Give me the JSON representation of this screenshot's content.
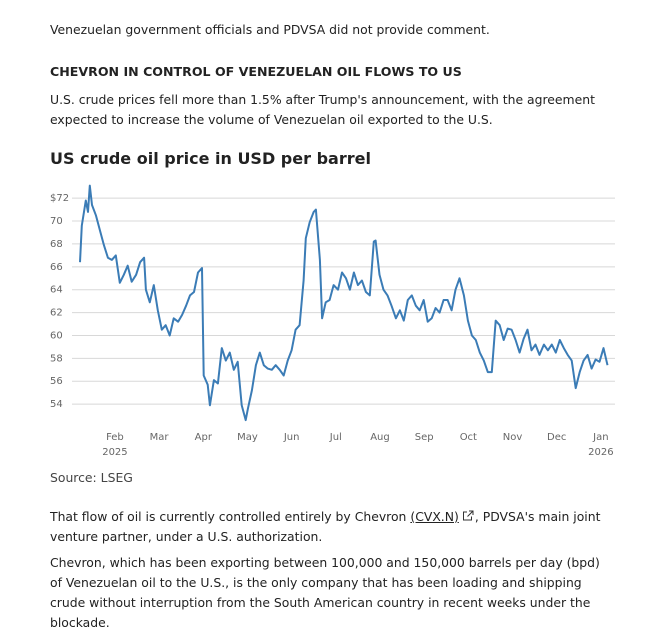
{
  "intro": "Venezuelan government officials and PDVSA did not provide comment.",
  "section_heading": "CHEVRON IN CONTROL OF VENEZUELAN OIL FLOWS TO US",
  "section_paragraph": "U.S. crude prices fell more than 1.5% after Trump's announcement, with the agreement expected to increase the volume of Venezuelan oil exported to the U.S.",
  "chart_data": {
    "type": "line",
    "title": "US crude oil price in USD per barrel",
    "source": "Source: LSEG",
    "color": "#3b7cb6",
    "x": [
      0.21,
      0.25,
      0.34,
      0.39,
      0.43,
      0.48,
      0.57,
      0.66,
      0.75,
      0.84,
      0.93,
      1.02,
      1.11,
      1.2,
      1.29,
      1.38,
      1.48,
      1.57,
      1.66,
      1.7,
      1.79,
      1.88,
      1.97,
      2.06,
      2.15,
      2.24,
      2.33,
      2.43,
      2.52,
      2.61,
      2.7,
      2.79,
      2.88,
      2.97,
      3.01,
      3.1,
      3.15,
      3.24,
      3.33,
      3.42,
      3.51,
      3.6,
      3.69,
      3.78,
      3.87,
      3.96,
      4.01,
      4.1,
      4.19,
      4.28,
      4.37,
      4.46,
      4.55,
      4.64,
      4.73,
      4.82,
      4.91,
      5.0,
      5.09,
      5.18,
      5.27,
      5.32,
      5.41,
      5.5,
      5.55,
      5.64,
      5.69,
      5.77,
      5.86,
      5.95,
      6.05,
      6.14,
      6.23,
      6.32,
      6.41,
      6.5,
      6.59,
      6.68,
      6.77,
      6.86,
      6.9,
      6.99,
      7.08,
      7.17,
      7.26,
      7.36,
      7.45,
      7.54,
      7.63,
      7.72,
      7.81,
      7.9,
      7.99,
      8.08,
      8.17,
      8.26,
      8.35,
      8.44,
      8.53,
      8.62,
      8.71,
      8.8,
      8.9,
      8.99,
      9.08,
      9.17,
      9.26,
      9.35,
      9.44,
      9.53,
      9.62,
      9.71,
      9.8,
      9.89,
      9.98,
      10.07,
      10.16,
      10.25,
      10.34,
      10.43,
      10.52,
      10.61,
      10.71,
      10.8,
      10.89,
      10.98,
      11.07,
      11.16,
      11.25,
      11.34,
      11.43,
      11.52,
      11.61,
      11.7,
      11.79,
      11.88,
      11.97,
      12.06,
      12.15
    ],
    "values": [
      66.4,
      69.6,
      71.8,
      70.8,
      73.1,
      71.4,
      70.5,
      69.2,
      67.9,
      66.8,
      66.6,
      67.0,
      64.6,
      65.3,
      66.1,
      64.7,
      65.3,
      66.4,
      66.8,
      64.0,
      62.9,
      64.4,
      62.2,
      60.5,
      60.9,
      60.0,
      61.5,
      61.2,
      61.8,
      62.6,
      63.5,
      63.8,
      65.5,
      65.9,
      56.5,
      55.7,
      53.9,
      56.1,
      55.8,
      58.9,
      57.8,
      58.5,
      57.0,
      57.7,
      53.9,
      52.6,
      53.6,
      55.2,
      57.4,
      58.5,
      57.4,
      57.1,
      57.0,
      57.4,
      57.0,
      56.5,
      57.8,
      58.7,
      60.5,
      60.9,
      64.8,
      68.5,
      69.9,
      70.8,
      71.0,
      66.6,
      61.5,
      62.9,
      63.1,
      64.4,
      64.0,
      65.5,
      65.0,
      64.0,
      65.5,
      64.4,
      64.8,
      63.8,
      63.5,
      68.2,
      68.3,
      65.3,
      64.0,
      63.5,
      62.6,
      61.5,
      62.2,
      61.3,
      63.1,
      63.5,
      62.6,
      62.2,
      63.1,
      61.2,
      61.5,
      62.4,
      62.0,
      63.1,
      63.1,
      62.2,
      64.0,
      65.0,
      63.5,
      61.3,
      60.0,
      59.6,
      58.5,
      57.8,
      56.8,
      56.8,
      61.3,
      60.9,
      59.6,
      60.6,
      60.5,
      59.6,
      58.5,
      59.7,
      60.5,
      58.7,
      59.2,
      58.3,
      59.2,
      58.7,
      59.2,
      58.5,
      59.6,
      58.9,
      58.3,
      57.8,
      55.4,
      56.8,
      57.8,
      58.3,
      57.1,
      57.9,
      57.7,
      58.9,
      57.4
    ],
    "xlim": [
      -0.47,
      12.32
    ],
    "xticks": [
      {
        "value": 1,
        "label": "Feb"
      },
      {
        "value": 2,
        "label": "Mar"
      },
      {
        "value": 3,
        "label": "Apr"
      },
      {
        "value": 4,
        "label": "May"
      },
      {
        "value": 5,
        "label": "Jun"
      },
      {
        "value": 6,
        "label": "Jul"
      },
      {
        "value": 7,
        "label": "Aug"
      },
      {
        "value": 8,
        "label": "Sep"
      },
      {
        "value": 9,
        "label": "Oct"
      },
      {
        "value": 10,
        "label": "Nov"
      },
      {
        "value": 11,
        "label": "Dec"
      },
      {
        "value": 12,
        "label": "Jan"
      }
    ],
    "xtick_years": [
      {
        "value": 1,
        "label": "2025"
      },
      {
        "value": 12,
        "label": "2026"
      }
    ],
    "ylim": [
      52,
      73.5
    ],
    "yticks": [
      54,
      56,
      58,
      60,
      62,
      64,
      66,
      68,
      70,
      {
        "value": 72,
        "label": "$72"
      }
    ],
    "grid": true
  },
  "paragraph_2": {
    "before": "That flow of oil is currently controlled entirely by Chevron ",
    "link": "(CVX.N)",
    "after": ", PDVSA's main joint venture partner, under a U.S. authorization."
  },
  "paragraph_3": "Chevron, which has been exporting between 100,000 and 150,000 barrels per day (bpd) of Venezuelan oil to the U.S., is the only company that has been loading and shipping crude without interruption from the South American country in recent weeks under the blockade."
}
